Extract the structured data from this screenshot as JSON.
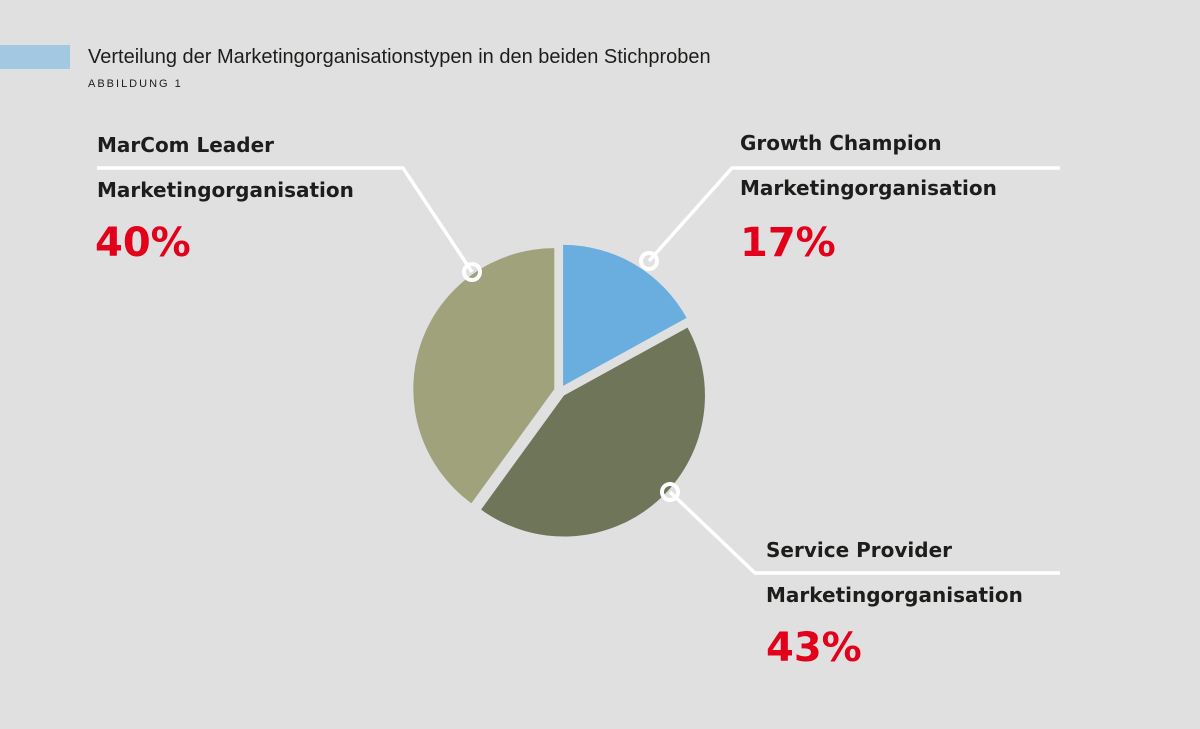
{
  "header": {
    "title": "Verteilung der Marketingorganisationstypen in den beiden Stichproben",
    "subtitle": "ABBILDUNG 1"
  },
  "chart_data": {
    "type": "pie",
    "title": "Verteilung der Marketingorganisationstypen in den beiden Stichproben",
    "slices": [
      {
        "name": "Growth Champion",
        "line2": "Marketingorganisation",
        "value": 17,
        "label": "17%",
        "color": "#6aaee0"
      },
      {
        "name": "Service Provider",
        "line2": "Marketingorganisation",
        "value": 43,
        "label": "43%",
        "color": "#6e7558"
      },
      {
        "name": "MarCom Leader",
        "line2": "Marketingorganisation",
        "value": 40,
        "label": "40%",
        "color": "#9fa27b"
      }
    ]
  }
}
